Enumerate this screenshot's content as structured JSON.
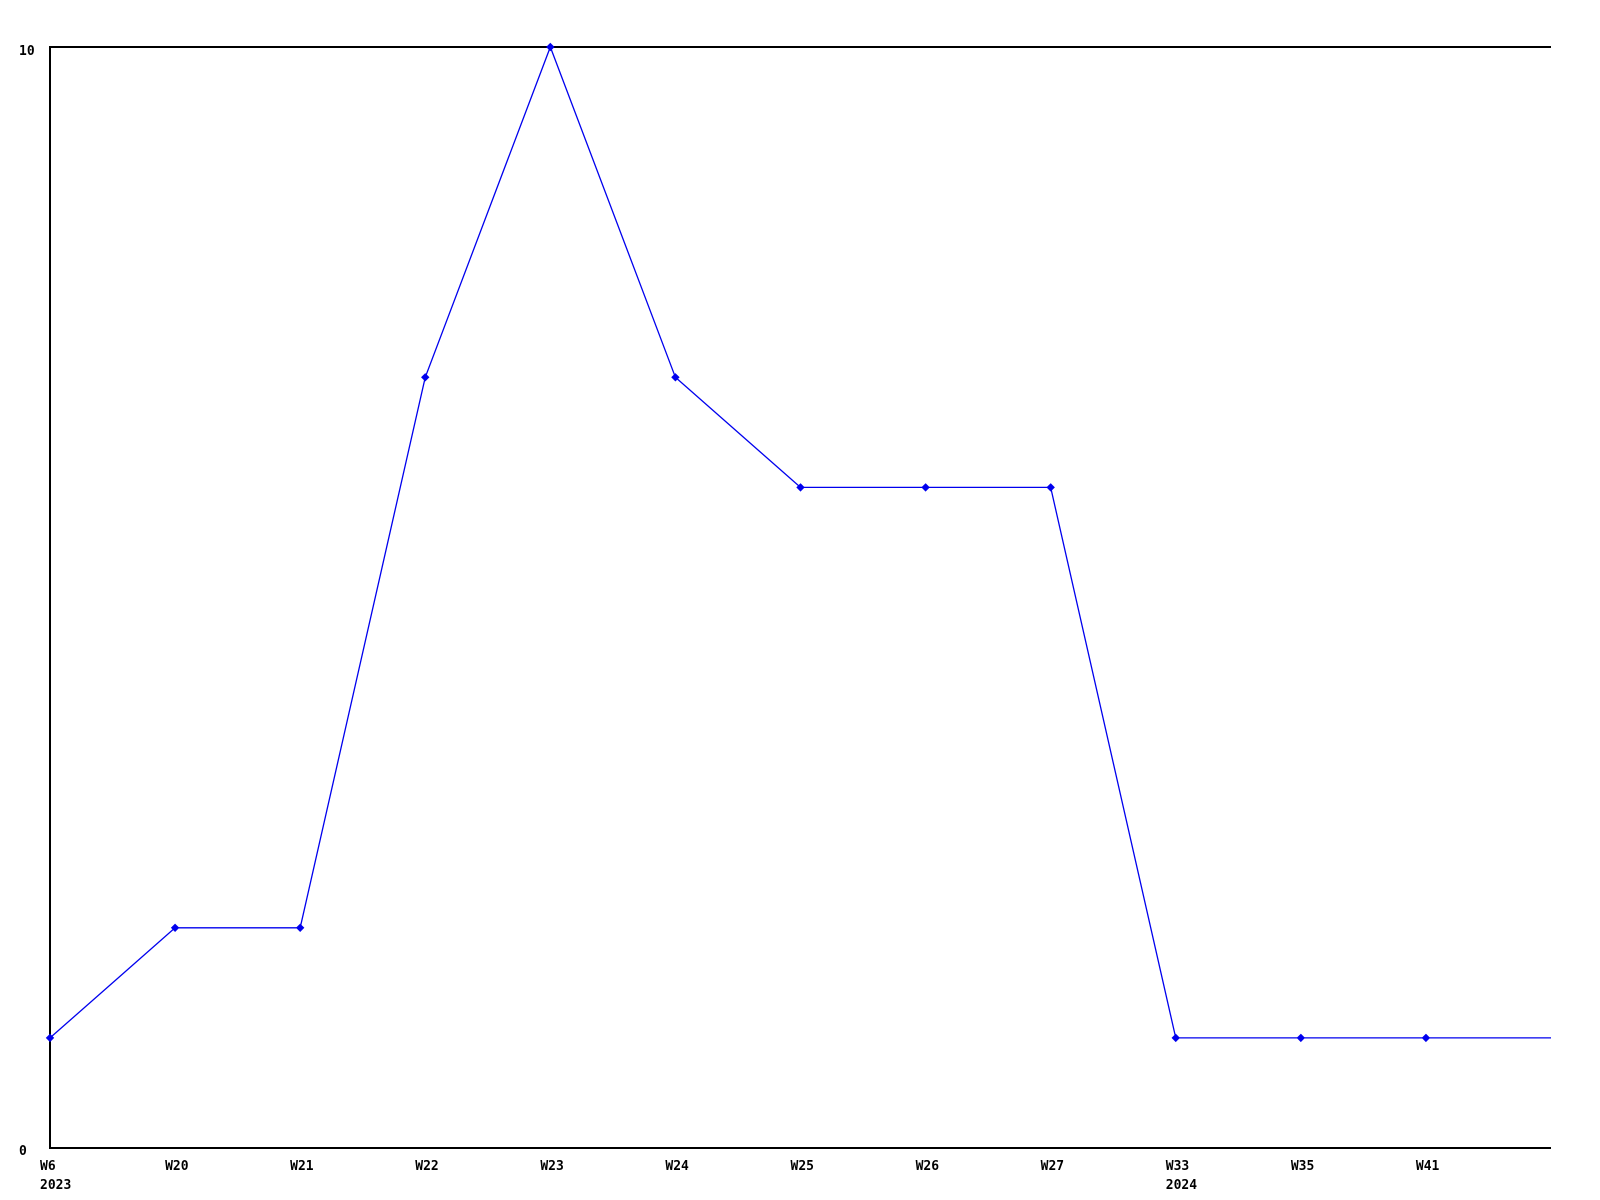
{
  "chart_data": {
    "type": "line",
    "title": "",
    "xlabel": "",
    "ylabel": "",
    "x_tick_labels": [
      "W6",
      "W20",
      "W21",
      "W22",
      "W23",
      "W24",
      "W25",
      "W26",
      "W27",
      "W33",
      "W35",
      "W41"
    ],
    "x_sub_labels": {
      "0": "2023",
      "9": "2024"
    },
    "values": [
      1,
      2,
      2,
      7,
      10,
      7,
      6,
      6,
      6,
      1,
      1,
      1
    ],
    "line_extends_to_right_edge": true,
    "right_edge_value": 1,
    "ylim": [
      0,
      10
    ],
    "y_tick_labels": [
      "0",
      "10"
    ],
    "grid": false,
    "legend": "none",
    "marker_shape": "diamond",
    "colors": {
      "line": "#0000ee",
      "marker": "#0000ee",
      "axis": "#000000",
      "text": "#000000",
      "background": "#ffffff"
    }
  }
}
